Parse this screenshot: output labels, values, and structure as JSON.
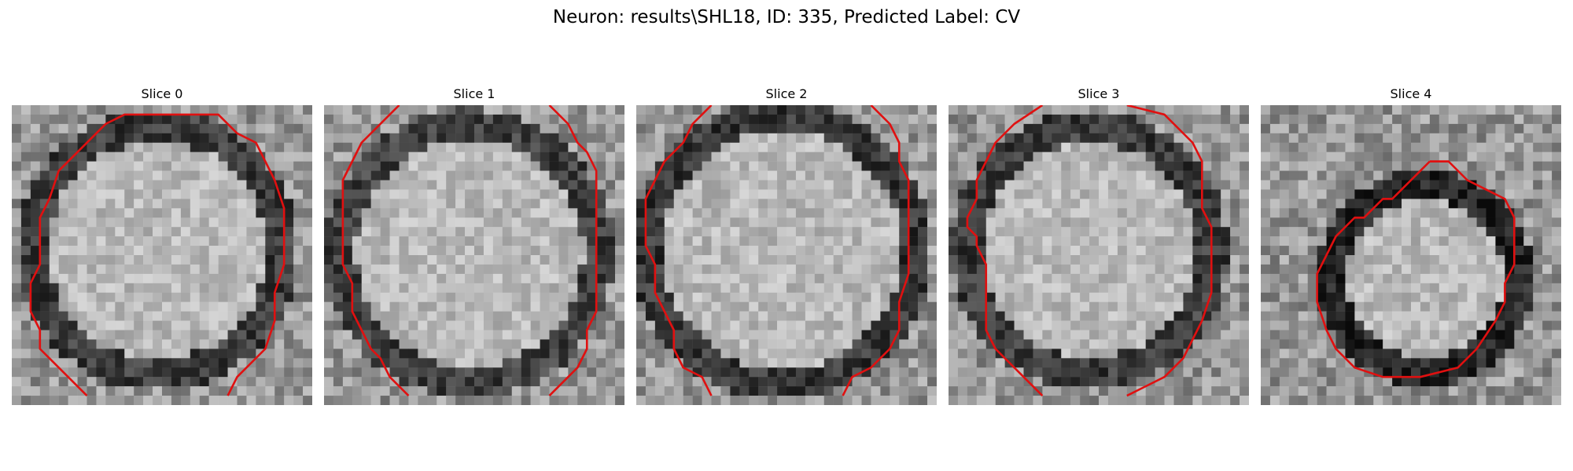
{
  "figure": {
    "title": "Neuron: results\\SHL18, ID: 335, Predicted Label: CV"
  },
  "panels": [
    {
      "title": "Slice 0"
    },
    {
      "title": "Slice 1"
    },
    {
      "title": "Slice 2"
    },
    {
      "title": "Slice 3"
    },
    {
      "title": "Slice 4"
    }
  ],
  "contour_color": "#e01010"
}
